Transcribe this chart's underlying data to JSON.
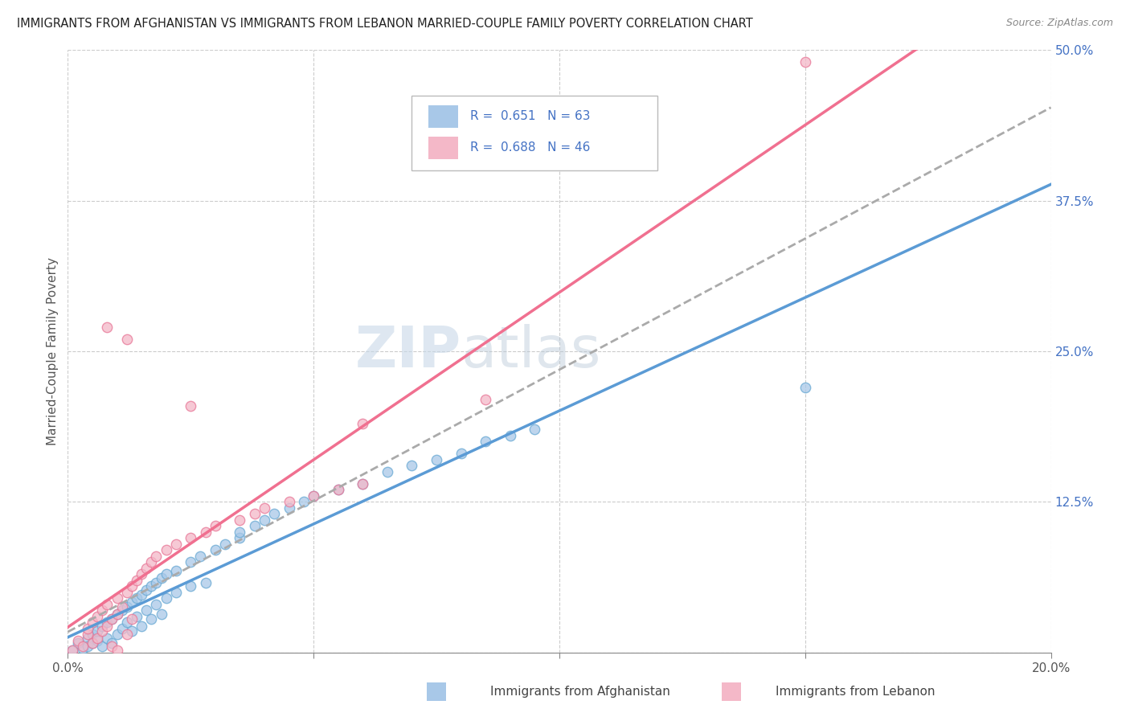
{
  "title": "IMMIGRANTS FROM AFGHANISTAN VS IMMIGRANTS FROM LEBANON MARRIED-COUPLE FAMILY POVERTY CORRELATION CHART",
  "source": "Source: ZipAtlas.com",
  "ylabel": "Married-Couple Family Poverty",
  "xlim": [
    0.0,
    0.2
  ],
  "ylim": [
    0.0,
    0.5
  ],
  "xticks": [
    0.0,
    0.05,
    0.1,
    0.15,
    0.2
  ],
  "yticks": [
    0.0,
    0.125,
    0.25,
    0.375,
    0.5
  ],
  "afghanistan_color": "#a8c8e8",
  "afghanistan_edge": "#6aaad4",
  "lebanon_color": "#f4b8c8",
  "lebanon_edge": "#e87898",
  "afghanistan_line": "#5b9bd5",
  "lebanon_line": "#f07090",
  "combined_line": "#aaaaaa",
  "afghanistan_R": 0.651,
  "afghanistan_N": 63,
  "lebanon_R": 0.688,
  "lebanon_N": 46,
  "watermark_zip": "ZIP",
  "watermark_atlas": "atlas",
  "background_color": "#ffffff",
  "grid_color": "#cccccc",
  "legend_color": "#4472c4",
  "tick_color": "#4472c4",
  "afghanistan_scatter": [
    [
      0.001,
      0.002
    ],
    [
      0.002,
      0.008
    ],
    [
      0.003,
      0.003
    ],
    [
      0.004,
      0.012
    ],
    [
      0.004,
      0.005
    ],
    [
      0.005,
      0.015
    ],
    [
      0.005,
      0.008
    ],
    [
      0.006,
      0.018
    ],
    [
      0.006,
      0.01
    ],
    [
      0.007,
      0.022
    ],
    [
      0.007,
      0.005
    ],
    [
      0.008,
      0.025
    ],
    [
      0.008,
      0.012
    ],
    [
      0.009,
      0.028
    ],
    [
      0.009,
      0.008
    ],
    [
      0.01,
      0.032
    ],
    [
      0.01,
      0.015
    ],
    [
      0.011,
      0.035
    ],
    [
      0.011,
      0.02
    ],
    [
      0.012,
      0.038
    ],
    [
      0.012,
      0.025
    ],
    [
      0.013,
      0.042
    ],
    [
      0.013,
      0.018
    ],
    [
      0.014,
      0.045
    ],
    [
      0.014,
      0.03
    ],
    [
      0.015,
      0.048
    ],
    [
      0.015,
      0.022
    ],
    [
      0.016,
      0.052
    ],
    [
      0.016,
      0.035
    ],
    [
      0.017,
      0.055
    ],
    [
      0.017,
      0.028
    ],
    [
      0.018,
      0.058
    ],
    [
      0.018,
      0.04
    ],
    [
      0.019,
      0.062
    ],
    [
      0.019,
      0.032
    ],
    [
      0.02,
      0.065
    ],
    [
      0.02,
      0.045
    ],
    [
      0.022,
      0.068
    ],
    [
      0.022,
      0.05
    ],
    [
      0.025,
      0.075
    ],
    [
      0.025,
      0.055
    ],
    [
      0.027,
      0.08
    ],
    [
      0.028,
      0.058
    ],
    [
      0.03,
      0.085
    ],
    [
      0.032,
      0.09
    ],
    [
      0.035,
      0.095
    ],
    [
      0.035,
      0.1
    ],
    [
      0.038,
      0.105
    ],
    [
      0.04,
      0.11
    ],
    [
      0.042,
      0.115
    ],
    [
      0.045,
      0.12
    ],
    [
      0.048,
      0.125
    ],
    [
      0.05,
      0.13
    ],
    [
      0.055,
      0.135
    ],
    [
      0.06,
      0.14
    ],
    [
      0.065,
      0.15
    ],
    [
      0.07,
      0.155
    ],
    [
      0.075,
      0.16
    ],
    [
      0.08,
      0.165
    ],
    [
      0.085,
      0.175
    ],
    [
      0.09,
      0.18
    ],
    [
      0.095,
      0.185
    ],
    [
      0.15,
      0.22
    ]
  ],
  "lebanon_scatter": [
    [
      0.001,
      0.002
    ],
    [
      0.002,
      0.01
    ],
    [
      0.003,
      0.005
    ],
    [
      0.004,
      0.015
    ],
    [
      0.004,
      0.02
    ],
    [
      0.005,
      0.008
    ],
    [
      0.005,
      0.025
    ],
    [
      0.006,
      0.012
    ],
    [
      0.006,
      0.03
    ],
    [
      0.007,
      0.018
    ],
    [
      0.007,
      0.035
    ],
    [
      0.008,
      0.022
    ],
    [
      0.008,
      0.04
    ],
    [
      0.009,
      0.028
    ],
    [
      0.009,
      0.005
    ],
    [
      0.01,
      0.032
    ],
    [
      0.01,
      0.045
    ],
    [
      0.011,
      0.038
    ],
    [
      0.012,
      0.05
    ],
    [
      0.012,
      0.015
    ],
    [
      0.013,
      0.055
    ],
    [
      0.013,
      0.028
    ],
    [
      0.014,
      0.06
    ],
    [
      0.015,
      0.065
    ],
    [
      0.016,
      0.07
    ],
    [
      0.017,
      0.075
    ],
    [
      0.018,
      0.08
    ],
    [
      0.02,
      0.085
    ],
    [
      0.022,
      0.09
    ],
    [
      0.025,
      0.095
    ],
    [
      0.028,
      0.1
    ],
    [
      0.03,
      0.105
    ],
    [
      0.035,
      0.11
    ],
    [
      0.038,
      0.115
    ],
    [
      0.04,
      0.12
    ],
    [
      0.045,
      0.125
    ],
    [
      0.05,
      0.13
    ],
    [
      0.055,
      0.135
    ],
    [
      0.06,
      0.14
    ],
    [
      0.008,
      0.27
    ],
    [
      0.012,
      0.26
    ],
    [
      0.025,
      0.205
    ],
    [
      0.06,
      0.19
    ],
    [
      0.085,
      0.21
    ],
    [
      0.15,
      0.49
    ],
    [
      0.01,
      0.002
    ]
  ]
}
